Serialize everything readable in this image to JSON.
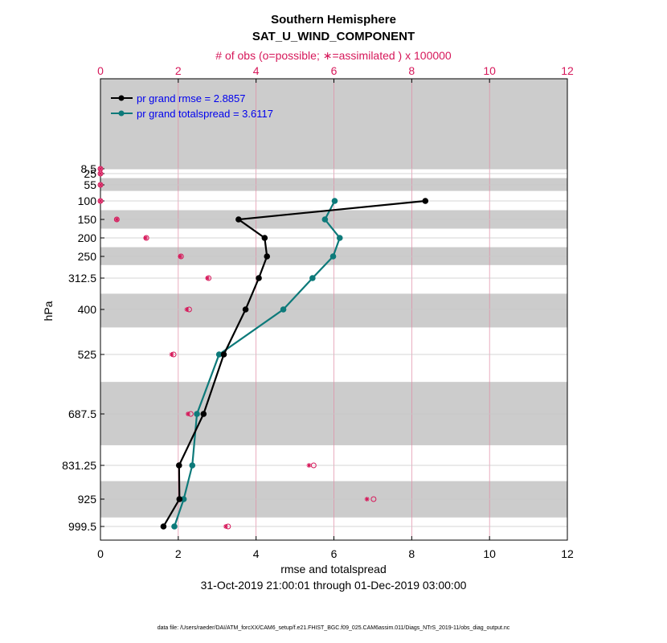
{
  "chart_data": {
    "type": "line",
    "title": "Southern Hemisphere",
    "subtitle": "SAT_U_WIND_COMPONENT",
    "top_axis_label": "# of obs (o=possible; ∗=assimilated ) x 100000",
    "xlabel": "rmse and totalspread",
    "ylabel": "hPa",
    "date_range": "31-Oct-2019 21:00:01 through 01-Dec-2019 03:00:00",
    "footnote": "data file: /Users/raeder/DAI/ATM_forcXX/CAM6_setup/f.e21.FHIST_BGC.f09_025.CAM6assim.011/Diags_NTrS_2019-11/obs_diag_output.nc",
    "xlim": [
      0,
      12
    ],
    "top_xlim": [
      0,
      12
    ],
    "x_ticks": [
      "0",
      "2",
      "4",
      "6",
      "8",
      "10",
      "12"
    ],
    "top_ticks": [
      "0",
      "2",
      "4",
      "6",
      "8",
      "10",
      "12"
    ],
    "y_ticks": [
      "8.5",
      "25",
      "55",
      "100",
      "150",
      "200",
      "250",
      "312.5",
      "400",
      "525",
      "687.5",
      "831.25",
      "925",
      "999.5"
    ],
    "levels": [
      8.5,
      25,
      55,
      100,
      150,
      200,
      250,
      312.5,
      400,
      525,
      687.5,
      831.25,
      925,
      999.5
    ],
    "grid": true,
    "legend_position": "top-left",
    "colors": {
      "rmse": "#000000",
      "spread": "#0d7a7a",
      "obs": "#d6185a",
      "band": "#cccccc"
    },
    "series": [
      {
        "name": "pr grand rmse = 2.8857",
        "key": "rmse",
        "levels": [
          100,
          150,
          200,
          250,
          312.5,
          400,
          525,
          687.5,
          831.25,
          925,
          999.5
        ],
        "values": [
          8.35,
          3.55,
          4.22,
          4.28,
          4.07,
          3.73,
          3.17,
          2.65,
          2.02,
          2.03,
          1.62
        ]
      },
      {
        "name": "pr grand totalspread = 3.6117",
        "key": "spread",
        "levels": [
          100,
          150,
          200,
          250,
          312.5,
          400,
          525,
          687.5,
          831.25,
          925,
          999.5
        ],
        "values": [
          6.02,
          5.77,
          6.15,
          5.98,
          5.45,
          4.7,
          3.05,
          2.48,
          2.36,
          2.14,
          1.9
        ]
      }
    ],
    "obs_possible": {
      "levels": [
        8.5,
        25,
        55,
        100,
        150,
        200,
        250,
        312.5,
        400,
        525,
        687.5,
        831.25,
        925,
        999.5
      ],
      "values": [
        0.0,
        0.0,
        0.0,
        0.0,
        0.42,
        1.18,
        2.07,
        2.78,
        2.28,
        1.88,
        2.32,
        5.48,
        7.02,
        3.28
      ]
    },
    "obs_assimilated": {
      "levels": [
        8.5,
        25,
        55,
        100,
        150,
        200,
        250,
        312.5,
        400,
        525,
        687.5,
        831.25,
        925,
        999.5
      ],
      "values": [
        0.0,
        0.0,
        0.0,
        0.0,
        0.42,
        1.16,
        2.05,
        2.75,
        2.22,
        1.83,
        2.25,
        5.36,
        6.85,
        3.22
      ]
    }
  }
}
